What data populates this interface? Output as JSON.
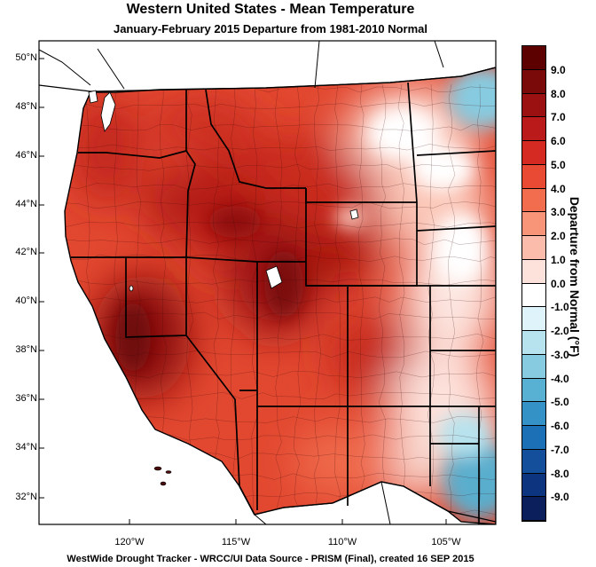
{
  "header": {
    "title": "Western United States - Mean Temperature",
    "subtitle": "January-February 2015  Departure from 1981-2010 Normal"
  },
  "map": {
    "region": "Western United States",
    "lat_labels": [
      "50°N",
      "48°N",
      "46°N",
      "44°N",
      "42°N",
      "40°N",
      "38°N",
      "36°N",
      "34°N",
      "32°N"
    ],
    "lon_labels": [
      "120°W",
      "115°W",
      "110°W",
      "105°W"
    ],
    "warm_core_color": "#8b0d0d",
    "cool_color": "#5aaecd"
  },
  "colorbar": {
    "title": "Departure from Normal (°F)",
    "labels": [
      "9.0",
      "8.0",
      "7.0",
      "6.0",
      "5.0",
      "4.0",
      "3.0",
      "2.0",
      "1.0",
      "0.0",
      "-1.0",
      "-2.0",
      "-3.0",
      "-4.0",
      "-5.0",
      "-6.0",
      "-7.0",
      "-8.0",
      "-9.0"
    ],
    "colors": [
      "#5c0000",
      "#7a0a0a",
      "#9b1010",
      "#bb1a1a",
      "#d42a22",
      "#e84a33",
      "#f26d4e",
      "#f89478",
      "#fbbcab",
      "#fde2dc",
      "#ffffff",
      "#dff3fa",
      "#b7e3ee",
      "#87cbe0",
      "#58b0d3",
      "#3592c7",
      "#1c70b5",
      "#144f9c",
      "#0d347f",
      "#0a1f5c"
    ]
  },
  "footer": {
    "credit": "WestWide Drought Tracker - WRCC/UI  Data Source - PRISM (Final), created 16 SEP 2015"
  }
}
